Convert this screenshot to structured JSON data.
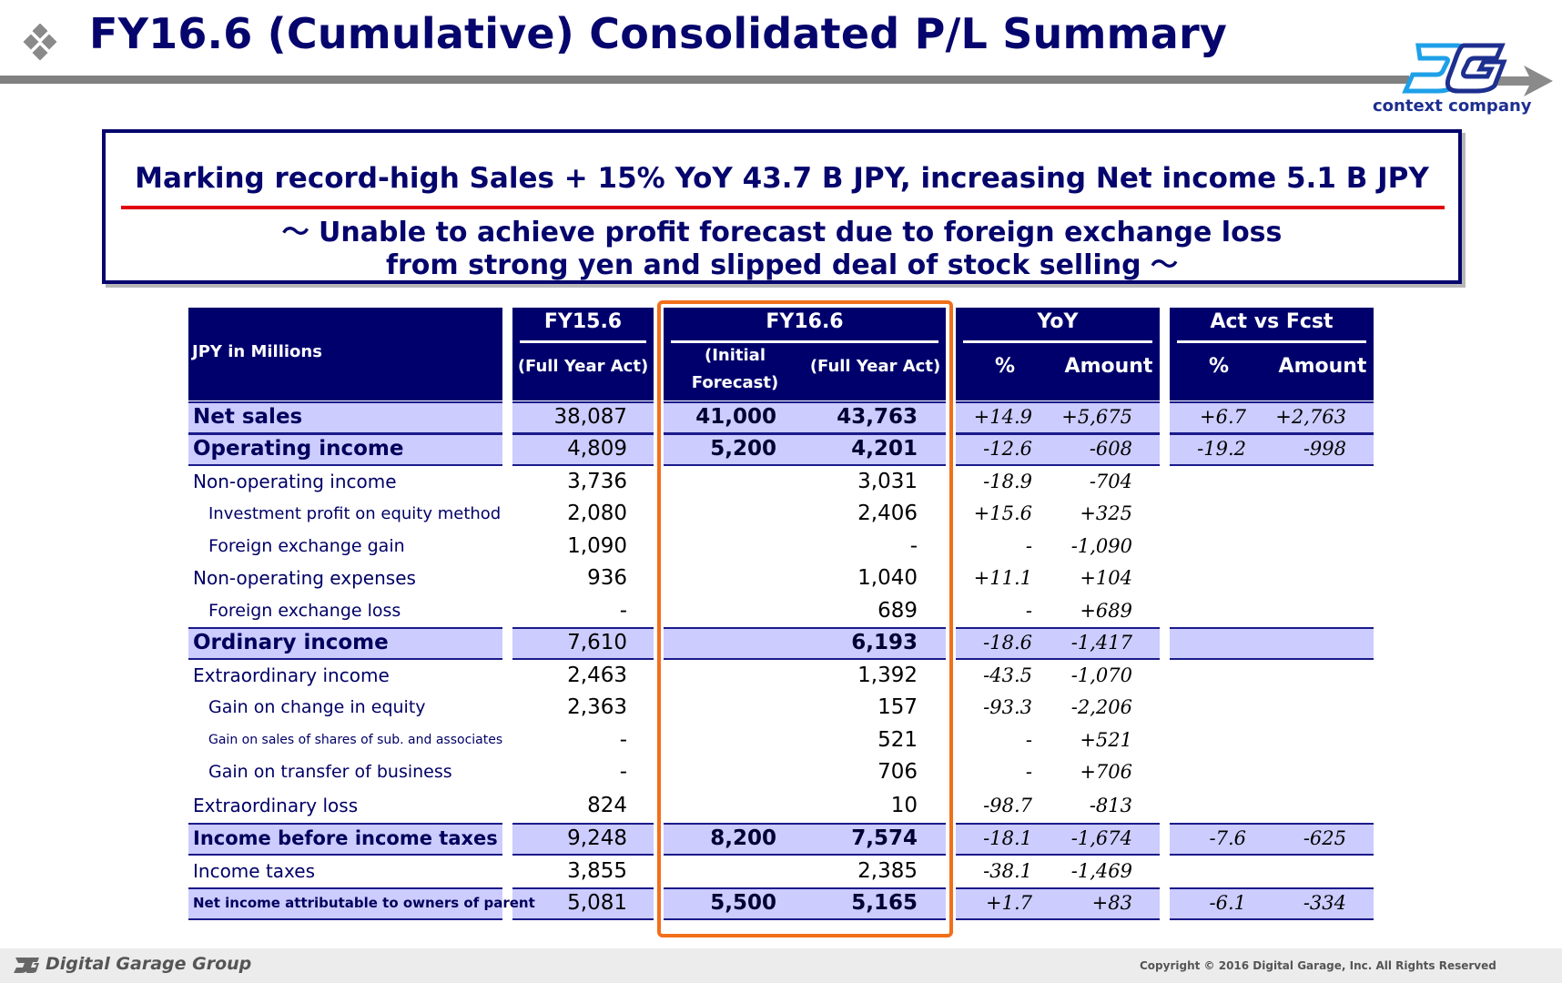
{
  "title": "FY16.6 (Cumulative) Consolidated P/L Summary",
  "brand": {
    "tagline": "context company",
    "footer_name": "Digital Garage Group",
    "copyright": "Copyright © 2016 Digital Garage, Inc. All Rights Reserved"
  },
  "callout": {
    "main": "Marking record-high Sales + 15% YoY 43.7 B JPY, increasing Net income 5.1 B JPY",
    "sub_line1": "～ Unable to achieve profit forecast due to foreign exchange loss",
    "sub_line2": "from strong yen and slipped deal of stock selling ～"
  },
  "table": {
    "unit_label": "JPY in Millions",
    "fy15": {
      "title": "FY15.6",
      "sub": "(Full Year Act)"
    },
    "fy16": {
      "title": "FY16.6",
      "sub_initial_1": "(Initial",
      "sub_initial_2": "Forecast)",
      "sub_full": "(Full Year Act)"
    },
    "yoy": {
      "title": "YoY",
      "pct": "%",
      "amount": "Amount"
    },
    "avf": {
      "title": "Act vs Fcst",
      "pct": "%",
      "amount": "Amount"
    },
    "rows": [
      {
        "label": "Net sales",
        "fy15": "38,087",
        "initial": "41,000",
        "actual": "43,763",
        "yoy_pct": "+14.9",
        "yoy_amt": "+5,675",
        "avf_pct": "+6.7",
        "avf_amt": "+2,763"
      },
      {
        "label": "Operating income",
        "fy15": "4,809",
        "initial": "5,200",
        "actual": "4,201",
        "yoy_pct": "-12.6",
        "yoy_amt": "-608",
        "avf_pct": "-19.2",
        "avf_amt": "-998"
      },
      {
        "label": "Non-operating income",
        "fy15": "3,736",
        "initial": "",
        "actual": "3,031",
        "yoy_pct": "-18.9",
        "yoy_amt": "-704",
        "avf_pct": "",
        "avf_amt": ""
      },
      {
        "label": "Investment profit on equity method",
        "fy15": "2,080",
        "initial": "",
        "actual": "2,406",
        "yoy_pct": "+15.6",
        "yoy_amt": "+325",
        "avf_pct": "",
        "avf_amt": ""
      },
      {
        "label": "Foreign exchange gain",
        "fy15": "1,090",
        "initial": "",
        "actual": "-",
        "yoy_pct": "-",
        "yoy_amt": "-1,090",
        "avf_pct": "",
        "avf_amt": ""
      },
      {
        "label": "Non-operating expenses",
        "fy15": "936",
        "initial": "",
        "actual": "1,040",
        "yoy_pct": "+11.1",
        "yoy_amt": "+104",
        "avf_pct": "",
        "avf_amt": ""
      },
      {
        "label": "Foreign exchange loss",
        "fy15": "-",
        "initial": "",
        "actual": "689",
        "yoy_pct": "-",
        "yoy_amt": "+689",
        "avf_pct": "",
        "avf_amt": ""
      },
      {
        "label": "Ordinary income",
        "fy15": "7,610",
        "initial": "",
        "actual": "6,193",
        "yoy_pct": "-18.6",
        "yoy_amt": "-1,417",
        "avf_pct": "",
        "avf_amt": ""
      },
      {
        "label": "Extraordinary income",
        "fy15": "2,463",
        "initial": "",
        "actual": "1,392",
        "yoy_pct": "-43.5",
        "yoy_amt": "-1,070",
        "avf_pct": "",
        "avf_amt": ""
      },
      {
        "label": "Gain on change in equity",
        "fy15": "2,363",
        "initial": "",
        "actual": "157",
        "yoy_pct": "-93.3",
        "yoy_amt": "-2,206",
        "avf_pct": "",
        "avf_amt": ""
      },
      {
        "label": "Gain on sales of shares of sub. and associates",
        "fy15": "-",
        "initial": "",
        "actual": "521",
        "yoy_pct": "-",
        "yoy_amt": "+521",
        "avf_pct": "",
        "avf_amt": ""
      },
      {
        "label": "Gain on transfer of business",
        "fy15": "-",
        "initial": "",
        "actual": "706",
        "yoy_pct": "-",
        "yoy_amt": "+706",
        "avf_pct": "",
        "avf_amt": ""
      },
      {
        "label": "Extraordinary loss",
        "fy15": "824",
        "initial": "",
        "actual": "10",
        "yoy_pct": "-98.7",
        "yoy_amt": "-813",
        "avf_pct": "",
        "avf_amt": ""
      },
      {
        "label": "Income before income taxes",
        "fy15": "9,248",
        "initial": "8,200",
        "actual": "7,574",
        "yoy_pct": "-18.1",
        "yoy_amt": "-1,674",
        "avf_pct": "-7.6",
        "avf_amt": "-625"
      },
      {
        "label": "Income taxes",
        "fy15": "3,855",
        "initial": "",
        "actual": "2,385",
        "yoy_pct": "-38.1",
        "yoy_amt": "-1,469",
        "avf_pct": "",
        "avf_amt": ""
      },
      {
        "label": "Net income attributable to owners of parent",
        "fy15": "5,081",
        "initial": "5,500",
        "actual": "5,165",
        "yoy_pct": "+1.7",
        "yoy_amt": "+83",
        "avf_pct": "-6.1",
        "avf_amt": "-334"
      }
    ]
  }
}
